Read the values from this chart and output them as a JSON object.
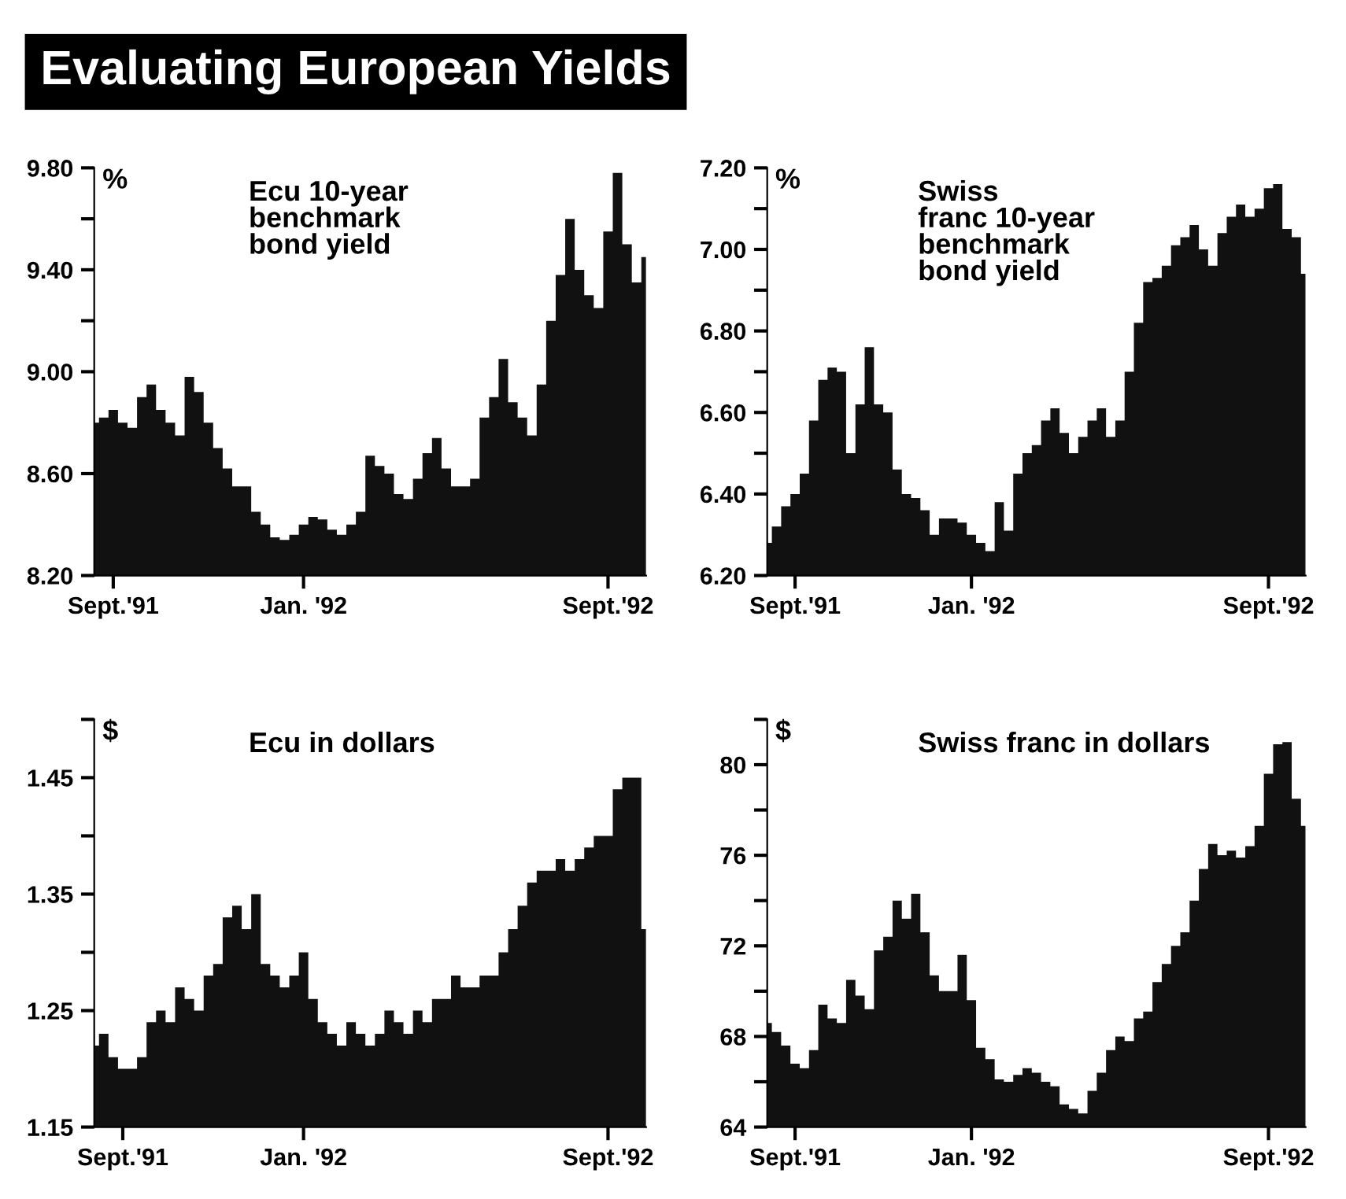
{
  "chart_data": [
    {
      "type": "other",
      "title": "Evaluating European Yields"
    },
    {
      "type": "area",
      "title": "Ecu 10-year\nbenchmark\nbond yield",
      "ylabel": "%",
      "color": "#111111",
      "x": [
        "1991-08-22",
        "1991-08-29",
        "1991-09-05",
        "1991-09-12",
        "1991-09-19",
        "1991-09-26",
        "1991-10-03",
        "1991-10-10",
        "1991-10-17",
        "1991-10-24",
        "1991-10-31",
        "1991-11-07",
        "1991-11-14",
        "1991-11-21",
        "1991-11-28",
        "1991-12-05",
        "1991-12-12",
        "1991-12-19",
        "1991-12-26",
        "1992-01-02",
        "1992-01-09",
        "1992-01-16",
        "1992-01-23",
        "1992-01-30",
        "1992-02-06",
        "1992-02-13",
        "1992-02-20",
        "1992-02-27",
        "1992-03-05",
        "1992-03-12",
        "1992-03-19",
        "1992-03-26",
        "1992-04-02",
        "1992-04-09",
        "1992-04-16",
        "1992-04-23",
        "1992-04-30",
        "1992-05-07",
        "1992-05-14",
        "1992-05-21",
        "1992-05-28",
        "1992-06-04",
        "1992-06-11",
        "1992-06-18",
        "1992-06-25",
        "1992-07-02",
        "1992-07-09",
        "1992-07-16",
        "1992-07-23",
        "1992-07-30",
        "1992-08-06",
        "1992-08-13",
        "1992-08-20",
        "1992-08-27",
        "1992-09-03",
        "1992-09-10",
        "1992-09-17",
        "1992-09-24",
        "1992-10-01"
      ],
      "values": [
        8.8,
        8.82,
        8.85,
        8.8,
        8.78,
        8.9,
        8.95,
        8.85,
        8.8,
        8.75,
        8.98,
        8.92,
        8.8,
        8.7,
        8.62,
        8.55,
        8.55,
        8.45,
        8.4,
        8.35,
        8.34,
        8.36,
        8.4,
        8.43,
        8.42,
        8.38,
        8.36,
        8.4,
        8.45,
        8.67,
        8.63,
        8.6,
        8.52,
        8.5,
        8.58,
        8.68,
        8.74,
        8.62,
        8.55,
        8.55,
        8.58,
        8.82,
        8.9,
        9.05,
        8.88,
        8.82,
        8.75,
        8.95,
        9.2,
        9.38,
        9.6,
        9.4,
        9.3,
        9.25,
        9.55,
        9.78,
        9.5,
        9.35,
        9.45
      ],
      "xlim": [
        "1991-08-22",
        "1992-10-01"
      ],
      "xticks": [
        {
          "value": "1991-09-05",
          "label": "Sept.'91"
        },
        {
          "value": "1992-01-23",
          "label": "Jan. '92"
        },
        {
          "value": "1992-09-03",
          "label": "Sept.'92"
        }
      ],
      "ylim": [
        8.2,
        9.8
      ],
      "yticks": [
        {
          "value": 8.2,
          "label": "8.20"
        },
        {
          "value": 8.6,
          "label": "8.60"
        },
        {
          "value": 9.0,
          "label": "9.00"
        },
        {
          "value": 9.2,
          "label": null
        },
        {
          "value": 9.4,
          "label": "9.40"
        },
        {
          "value": 9.6,
          "label": null
        },
        {
          "value": 9.8,
          "label": "9.80"
        }
      ]
    },
    {
      "type": "area",
      "title": "Swiss\nfranc 10-year\nbenchmark\nbond yield",
      "ylabel": "%",
      "color": "#111111",
      "x": [
        "1991-08-22",
        "1991-08-29",
        "1991-09-05",
        "1991-09-12",
        "1991-09-19",
        "1991-09-26",
        "1991-10-03",
        "1991-10-10",
        "1991-10-17",
        "1991-10-24",
        "1991-10-31",
        "1991-11-07",
        "1991-11-14",
        "1991-11-21",
        "1991-11-28",
        "1991-12-05",
        "1991-12-12",
        "1991-12-19",
        "1991-12-26",
        "1992-01-02",
        "1992-01-09",
        "1992-01-16",
        "1992-01-23",
        "1992-01-30",
        "1992-02-06",
        "1992-02-13",
        "1992-02-20",
        "1992-02-27",
        "1992-03-05",
        "1992-03-12",
        "1992-03-19",
        "1992-03-26",
        "1992-04-02",
        "1992-04-09",
        "1992-04-16",
        "1992-04-23",
        "1992-04-30",
        "1992-05-07",
        "1992-05-14",
        "1992-05-21",
        "1992-05-28",
        "1992-06-04",
        "1992-06-11",
        "1992-06-18",
        "1992-06-25",
        "1992-07-02",
        "1992-07-09",
        "1992-07-16",
        "1992-07-23",
        "1992-07-30",
        "1992-08-06",
        "1992-08-13",
        "1992-08-20",
        "1992-08-27",
        "1992-09-03",
        "1992-09-10",
        "1992-09-17",
        "1992-09-24",
        "1992-10-01"
      ],
      "values": [
        6.28,
        6.32,
        6.37,
        6.4,
        6.45,
        6.58,
        6.68,
        6.71,
        6.7,
        6.5,
        6.62,
        6.76,
        6.62,
        6.6,
        6.46,
        6.4,
        6.39,
        6.36,
        6.3,
        6.34,
        6.34,
        6.33,
        6.3,
        6.28,
        6.26,
        6.38,
        6.31,
        6.45,
        6.5,
        6.52,
        6.58,
        6.61,
        6.55,
        6.5,
        6.54,
        6.58,
        6.61,
        6.54,
        6.58,
        6.7,
        6.82,
        6.92,
        6.93,
        6.96,
        7.01,
        7.03,
        7.06,
        7.0,
        6.96,
        7.04,
        7.08,
        7.11,
        7.08,
        7.1,
        7.15,
        7.16,
        7.05,
        7.03,
        6.94
      ],
      "xlim": [
        "1991-08-22",
        "1992-10-01"
      ],
      "xticks": [
        {
          "value": "1991-09-12",
          "label": "Sept.'91"
        },
        {
          "value": "1992-01-23",
          "label": "Jan. '92"
        },
        {
          "value": "1992-09-03",
          "label": "Sept.'92"
        }
      ],
      "ylim": [
        6.2,
        7.2
      ],
      "yticks": [
        {
          "value": 6.2,
          "label": "6.20"
        },
        {
          "value": 6.4,
          "label": "6.40"
        },
        {
          "value": 6.5,
          "label": null
        },
        {
          "value": 6.6,
          "label": "6.60"
        },
        {
          "value": 6.7,
          "label": null
        },
        {
          "value": 6.8,
          "label": "6.80"
        },
        {
          "value": 6.9,
          "label": null
        },
        {
          "value": 7.0,
          "label": "7.00"
        },
        {
          "value": 7.1,
          "label": null
        },
        {
          "value": 7.2,
          "label": "7.20"
        }
      ]
    },
    {
      "type": "area",
      "title": "Ecu in dollars",
      "ylabel": "$",
      "color": "#111111",
      "x": [
        "1991-08-22",
        "1991-08-29",
        "1991-09-05",
        "1991-09-12",
        "1991-09-19",
        "1991-09-26",
        "1991-10-03",
        "1991-10-10",
        "1991-10-17",
        "1991-10-24",
        "1991-10-31",
        "1991-11-07",
        "1991-11-14",
        "1991-11-21",
        "1991-11-28",
        "1991-12-05",
        "1991-12-12",
        "1991-12-19",
        "1991-12-26",
        "1992-01-02",
        "1992-01-09",
        "1992-01-16",
        "1992-01-23",
        "1992-01-30",
        "1992-02-06",
        "1992-02-13",
        "1992-02-20",
        "1992-02-27",
        "1992-03-05",
        "1992-03-12",
        "1992-03-19",
        "1992-03-26",
        "1992-04-02",
        "1992-04-09",
        "1992-04-16",
        "1992-04-23",
        "1992-04-30",
        "1992-05-07",
        "1992-05-14",
        "1992-05-21",
        "1992-05-28",
        "1992-06-04",
        "1992-06-11",
        "1992-06-18",
        "1992-06-25",
        "1992-07-02",
        "1992-07-09",
        "1992-07-16",
        "1992-07-23",
        "1992-07-30",
        "1992-08-06",
        "1992-08-13",
        "1992-08-20",
        "1992-08-27",
        "1992-09-03",
        "1992-09-10",
        "1992-09-17",
        "1992-09-24",
        "1992-10-01"
      ],
      "values": [
        1.22,
        1.23,
        1.21,
        1.2,
        1.2,
        1.21,
        1.24,
        1.25,
        1.24,
        1.27,
        1.26,
        1.25,
        1.28,
        1.29,
        1.33,
        1.34,
        1.32,
        1.35,
        1.29,
        1.28,
        1.27,
        1.28,
        1.3,
        1.26,
        1.24,
        1.23,
        1.22,
        1.24,
        1.23,
        1.22,
        1.23,
        1.25,
        1.24,
        1.23,
        1.25,
        1.24,
        1.26,
        1.26,
        1.28,
        1.27,
        1.27,
        1.28,
        1.28,
        1.3,
        1.32,
        1.34,
        1.36,
        1.37,
        1.37,
        1.38,
        1.37,
        1.38,
        1.39,
        1.4,
        1.4,
        1.44,
        1.45,
        1.45,
        1.32
      ],
      "xlim": [
        "1991-08-22",
        "1992-10-01"
      ],
      "xticks": [
        {
          "value": "1991-09-12",
          "label": "Sept.'91"
        },
        {
          "value": "1992-01-23",
          "label": "Jan. '92"
        },
        {
          "value": "1992-09-03",
          "label": "Sept.'92"
        }
      ],
      "ylim": [
        1.15,
        1.5
      ],
      "yticks": [
        {
          "value": 1.15,
          "label": "1.15"
        },
        {
          "value": 1.25,
          "label": "1.25"
        },
        {
          "value": 1.3,
          "label": null
        },
        {
          "value": 1.35,
          "label": "1.35"
        },
        {
          "value": 1.4,
          "label": null
        },
        {
          "value": 1.45,
          "label": "1.45"
        },
        {
          "value": 1.5,
          "label": null
        }
      ]
    },
    {
      "type": "area",
      "title": "Swiss franc in dollars",
      "ylabel": "$",
      "color": "#111111",
      "x": [
        "1991-08-22",
        "1991-08-29",
        "1991-09-05",
        "1991-09-12",
        "1991-09-19",
        "1991-09-26",
        "1991-10-03",
        "1991-10-10",
        "1991-10-17",
        "1991-10-24",
        "1991-10-31",
        "1991-11-07",
        "1991-11-14",
        "1991-11-21",
        "1991-11-28",
        "1991-12-05",
        "1991-12-12",
        "1991-12-19",
        "1991-12-26",
        "1992-01-02",
        "1992-01-09",
        "1992-01-16",
        "1992-01-23",
        "1992-01-30",
        "1992-02-06",
        "1992-02-13",
        "1992-02-20",
        "1992-02-27",
        "1992-03-05",
        "1992-03-12",
        "1992-03-19",
        "1992-03-26",
        "1992-04-02",
        "1992-04-09",
        "1992-04-16",
        "1992-04-23",
        "1992-04-30",
        "1992-05-07",
        "1992-05-14",
        "1992-05-21",
        "1992-05-28",
        "1992-06-04",
        "1992-06-11",
        "1992-06-18",
        "1992-06-25",
        "1992-07-02",
        "1992-07-09",
        "1992-07-16",
        "1992-07-23",
        "1992-07-30",
        "1992-08-06",
        "1992-08-13",
        "1992-08-20",
        "1992-08-27",
        "1992-09-03",
        "1992-09-10",
        "1992-09-17",
        "1992-09-24",
        "1992-10-01"
      ],
      "values": [
        68.6,
        68.2,
        67.6,
        66.8,
        66.6,
        67.4,
        69.4,
        68.8,
        68.6,
        70.5,
        69.8,
        69.2,
        71.8,
        72.4,
        74.0,
        73.2,
        74.3,
        72.6,
        70.7,
        70.0,
        70.0,
        71.6,
        69.6,
        67.5,
        67.0,
        66.1,
        66.0,
        66.3,
        66.6,
        66.4,
        66.0,
        65.8,
        65.0,
        64.8,
        64.6,
        65.6,
        66.4,
        67.4,
        68.0,
        67.8,
        68.8,
        69.1,
        70.4,
        71.2,
        72.0,
        72.6,
        74.0,
        75.4,
        76.5,
        76.0,
        76.2,
        75.9,
        76.4,
        77.3,
        79.6,
        80.9,
        81.0,
        78.5,
        77.3
      ],
      "xlim": [
        "1991-08-22",
        "1992-10-01"
      ],
      "xticks": [
        {
          "value": "1991-09-12",
          "label": "Sept.'91"
        },
        {
          "value": "1992-01-23",
          "label": "Jan. '92"
        },
        {
          "value": "1992-09-03",
          "label": "Sept.'92"
        }
      ],
      "ylim": [
        64,
        82
      ],
      "yticks": [
        64,
        {
          "value": 66,
          "label": null
        },
        68,
        {
          "value": 70,
          "label": null
        },
        72,
        {
          "value": 74,
          "label": null
        },
        76,
        {
          "value": 78,
          "label": null
        },
        80,
        {
          "value": 82,
          "label": null
        }
      ]
    }
  ]
}
